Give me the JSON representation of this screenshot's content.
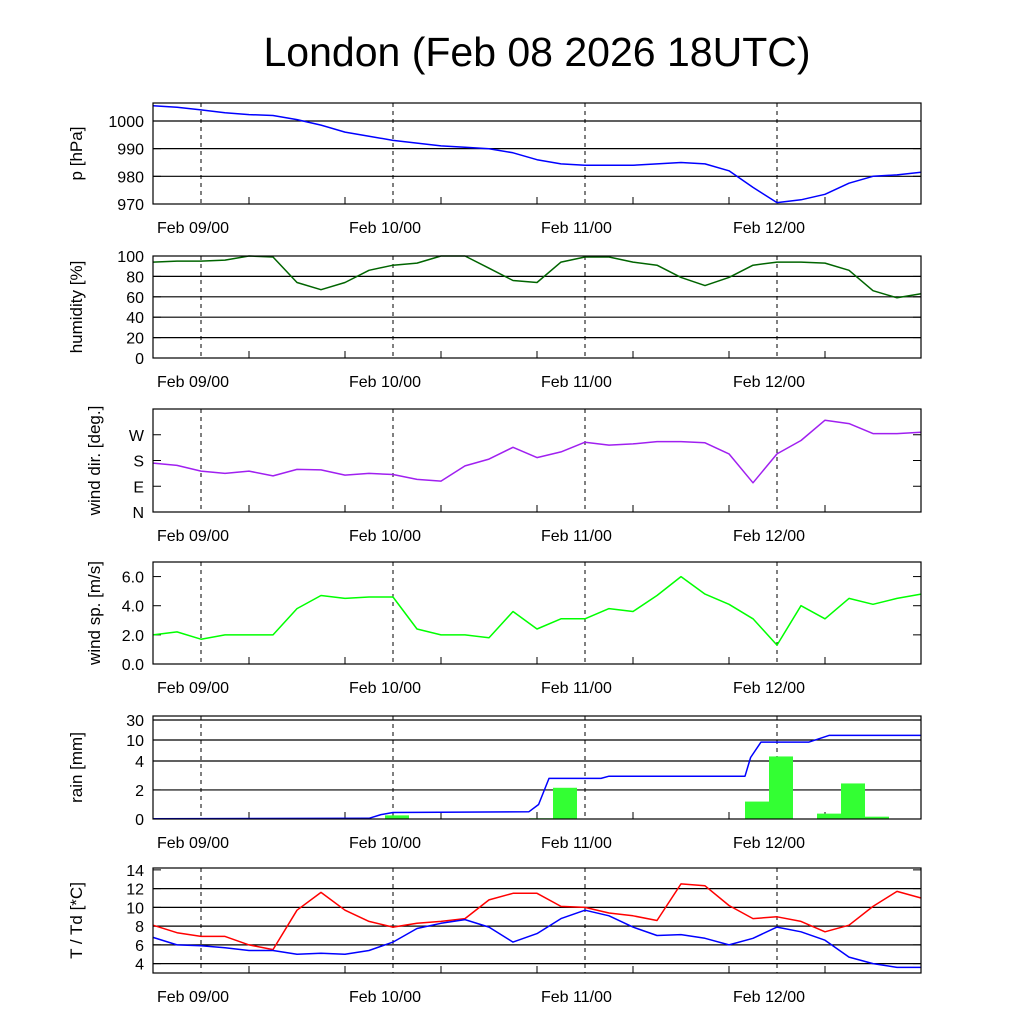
{
  "chart_data": [
    {
      "id": "pressure",
      "type": "line",
      "title": "London (Feb 08 2026 18UTC)",
      "ylabel": "p [hPa]",
      "ylim": [
        970,
        1006.5
      ],
      "yticks": [
        970,
        980,
        990,
        1000
      ],
      "ytick_labels": [
        "970",
        "980",
        "990",
        "1000"
      ],
      "grid_y": [
        980,
        990,
        1000
      ],
      "series": [
        {
          "name": "pressure",
          "color": "#0000ff",
          "values": [
            1005.5,
            1005,
            1004,
            1003,
            1002.3,
            1002,
            1000.5,
            998.5,
            996,
            994.5,
            993,
            992,
            991,
            990.5,
            990,
            988.5,
            986,
            984.5,
            984,
            984,
            984,
            984.5,
            985,
            984.5,
            982,
            976,
            970.5,
            971.5,
            973.5,
            977.5,
            980,
            980.5,
            981.5
          ]
        }
      ]
    },
    {
      "id": "humidity",
      "type": "line",
      "ylabel": "humidity [%]",
      "ylim": [
        0,
        100
      ],
      "yticks": [
        0,
        20,
        40,
        60,
        80,
        100
      ],
      "ytick_labels": [
        "0",
        "20",
        "40",
        "60",
        "80",
        "100"
      ],
      "grid_y": [
        20,
        40,
        60,
        80
      ],
      "series": [
        {
          "name": "humidity",
          "color": "#006400",
          "values": [
            94,
            95,
            95,
            96,
            100,
            99,
            74,
            67,
            74,
            86,
            91,
            93,
            100,
            100,
            88,
            76,
            74,
            94,
            99,
            99,
            94,
            91,
            79,
            71,
            79,
            91,
            94,
            94,
            93,
            86,
            66,
            59,
            63
          ]
        }
      ]
    },
    {
      "id": "wind_direction",
      "type": "line",
      "ylabel": "wind dir. [deg.]",
      "ylim": [
        0,
        360
      ],
      "yticks": [
        0,
        90,
        180,
        270
      ],
      "ytick_labels": [
        "N",
        "E",
        "S",
        "W"
      ],
      "grid_y": [],
      "series": [
        {
          "name": "wind direction",
          "color": "#a020f0",
          "values": [
            171,
            163,
            143,
            135,
            143,
            126,
            149,
            147,
            129,
            135,
            131,
            114,
            108,
            161,
            185,
            226,
            190,
            210,
            244,
            234,
            238,
            246,
            246,
            242,
            203,
            102,
            203,
            250,
            321,
            309,
            274,
            274,
            279
          ]
        }
      ]
    },
    {
      "id": "wind_speed",
      "type": "line",
      "ylabel": "wind sp. [m/s]",
      "ylim": [
        0,
        7
      ],
      "yticks": [
        0,
        2,
        4,
        6
      ],
      "ytick_labels": [
        "0.0",
        "2.0",
        "4.0",
        "6.0"
      ],
      "grid_y": [],
      "series": [
        {
          "name": "wind speed",
          "color": "#00ff00",
          "values": [
            2.0,
            2.2,
            1.7,
            2.0,
            2.0,
            2.0,
            3.8,
            4.7,
            4.5,
            4.6,
            4.6,
            2.4,
            2.0,
            2.0,
            1.8,
            3.6,
            2.4,
            3.1,
            3.1,
            3.8,
            3.6,
            4.7,
            6.0,
            4.8,
            4.1,
            3.1,
            1.3,
            4.0,
            3.1,
            4.5,
            4.1,
            4.5,
            4.8
          ]
        }
      ]
    },
    {
      "id": "rain",
      "type": "bar",
      "ylabel": "rain [mm]",
      "ylim": [
        0,
        30
      ],
      "yticks": [
        0,
        2,
        4,
        10,
        30
      ],
      "ytick_labels": [
        "0",
        "2",
        "4",
        "10",
        "30"
      ],
      "grid_y": [
        2,
        4,
        10,
        30
      ],
      "bars": {
        "name": "3-hourly rain",
        "color": "#33ff33",
        "width_hours": 3,
        "center_hours": [
          6.5,
          30.5,
          48.5,
          51.5,
          57.5,
          75.5,
          78.5,
          84.5,
          87.5,
          90.5
        ],
        "values": [
          0.05,
          0.25,
          0.05,
          2.15,
          0.03,
          1.2,
          5.3,
          0.37,
          2.45,
          0.16
        ]
      },
      "series": [
        {
          "name": "accumulated rain",
          "color": "#0000ff",
          "hours": [
            0,
            27,
            28.5,
            30,
            47,
            48.2,
            49.5,
            56,
            57,
            74,
            74.7,
            76,
            82,
            84.5,
            96
          ],
          "values": [
            0.02,
            0.05,
            0.3,
            0.45,
            0.5,
            1.0,
            2.8,
            2.8,
            2.95,
            2.95,
            5,
            9.4,
            9.4,
            14.6,
            14.6
          ]
        }
      ]
    },
    {
      "id": "temperature",
      "type": "line",
      "ylabel": "T / Td [*C]",
      "ylim": [
        3,
        14.2
      ],
      "yticks": [
        4,
        6,
        8,
        10,
        12,
        14
      ],
      "ytick_labels": [
        "4",
        "6",
        "8",
        "10",
        "12",
        "14"
      ],
      "grid_y": [
        4,
        6,
        8,
        10,
        12
      ],
      "series": [
        {
          "name": "T",
          "color": "#ff0000",
          "values": [
            8.1,
            7.3,
            6.9,
            6.9,
            6.0,
            5.5,
            9.7,
            11.6,
            9.7,
            8.5,
            7.9,
            8.3,
            8.5,
            8.8,
            10.8,
            11.5,
            11.5,
            10.1,
            10.0,
            9.4,
            9.1,
            8.6,
            12.5,
            12.3,
            10.2,
            8.8,
            9.0,
            8.5,
            7.4,
            8.1,
            10.1,
            11.7,
            11.0
          ]
        },
        {
          "name": "Td",
          "color": "#0000ff",
          "values": [
            6.8,
            6.0,
            5.9,
            5.7,
            5.4,
            5.4,
            5.0,
            5.1,
            5.0,
            5.4,
            6.3,
            7.75,
            8.3,
            8.7,
            7.9,
            6.3,
            7.2,
            8.8,
            9.7,
            9.1,
            7.9,
            7.0,
            7.1,
            6.7,
            6.0,
            6.7,
            7.9,
            7.4,
            6.5,
            4.7,
            4.0,
            3.6,
            3.6
          ]
        }
      ]
    }
  ],
  "x_axis": {
    "hours_step": 3,
    "hours_range": [
      0,
      96
    ],
    "day_ticks_hours": [
      6,
      30,
      54,
      78
    ],
    "day_tick_labels": [
      "Feb 09/00",
      "Feb 10/00",
      "Feb 11/00",
      "Feb 12/00"
    ]
  },
  "title": "London (Feb 08 2026 18UTC)"
}
